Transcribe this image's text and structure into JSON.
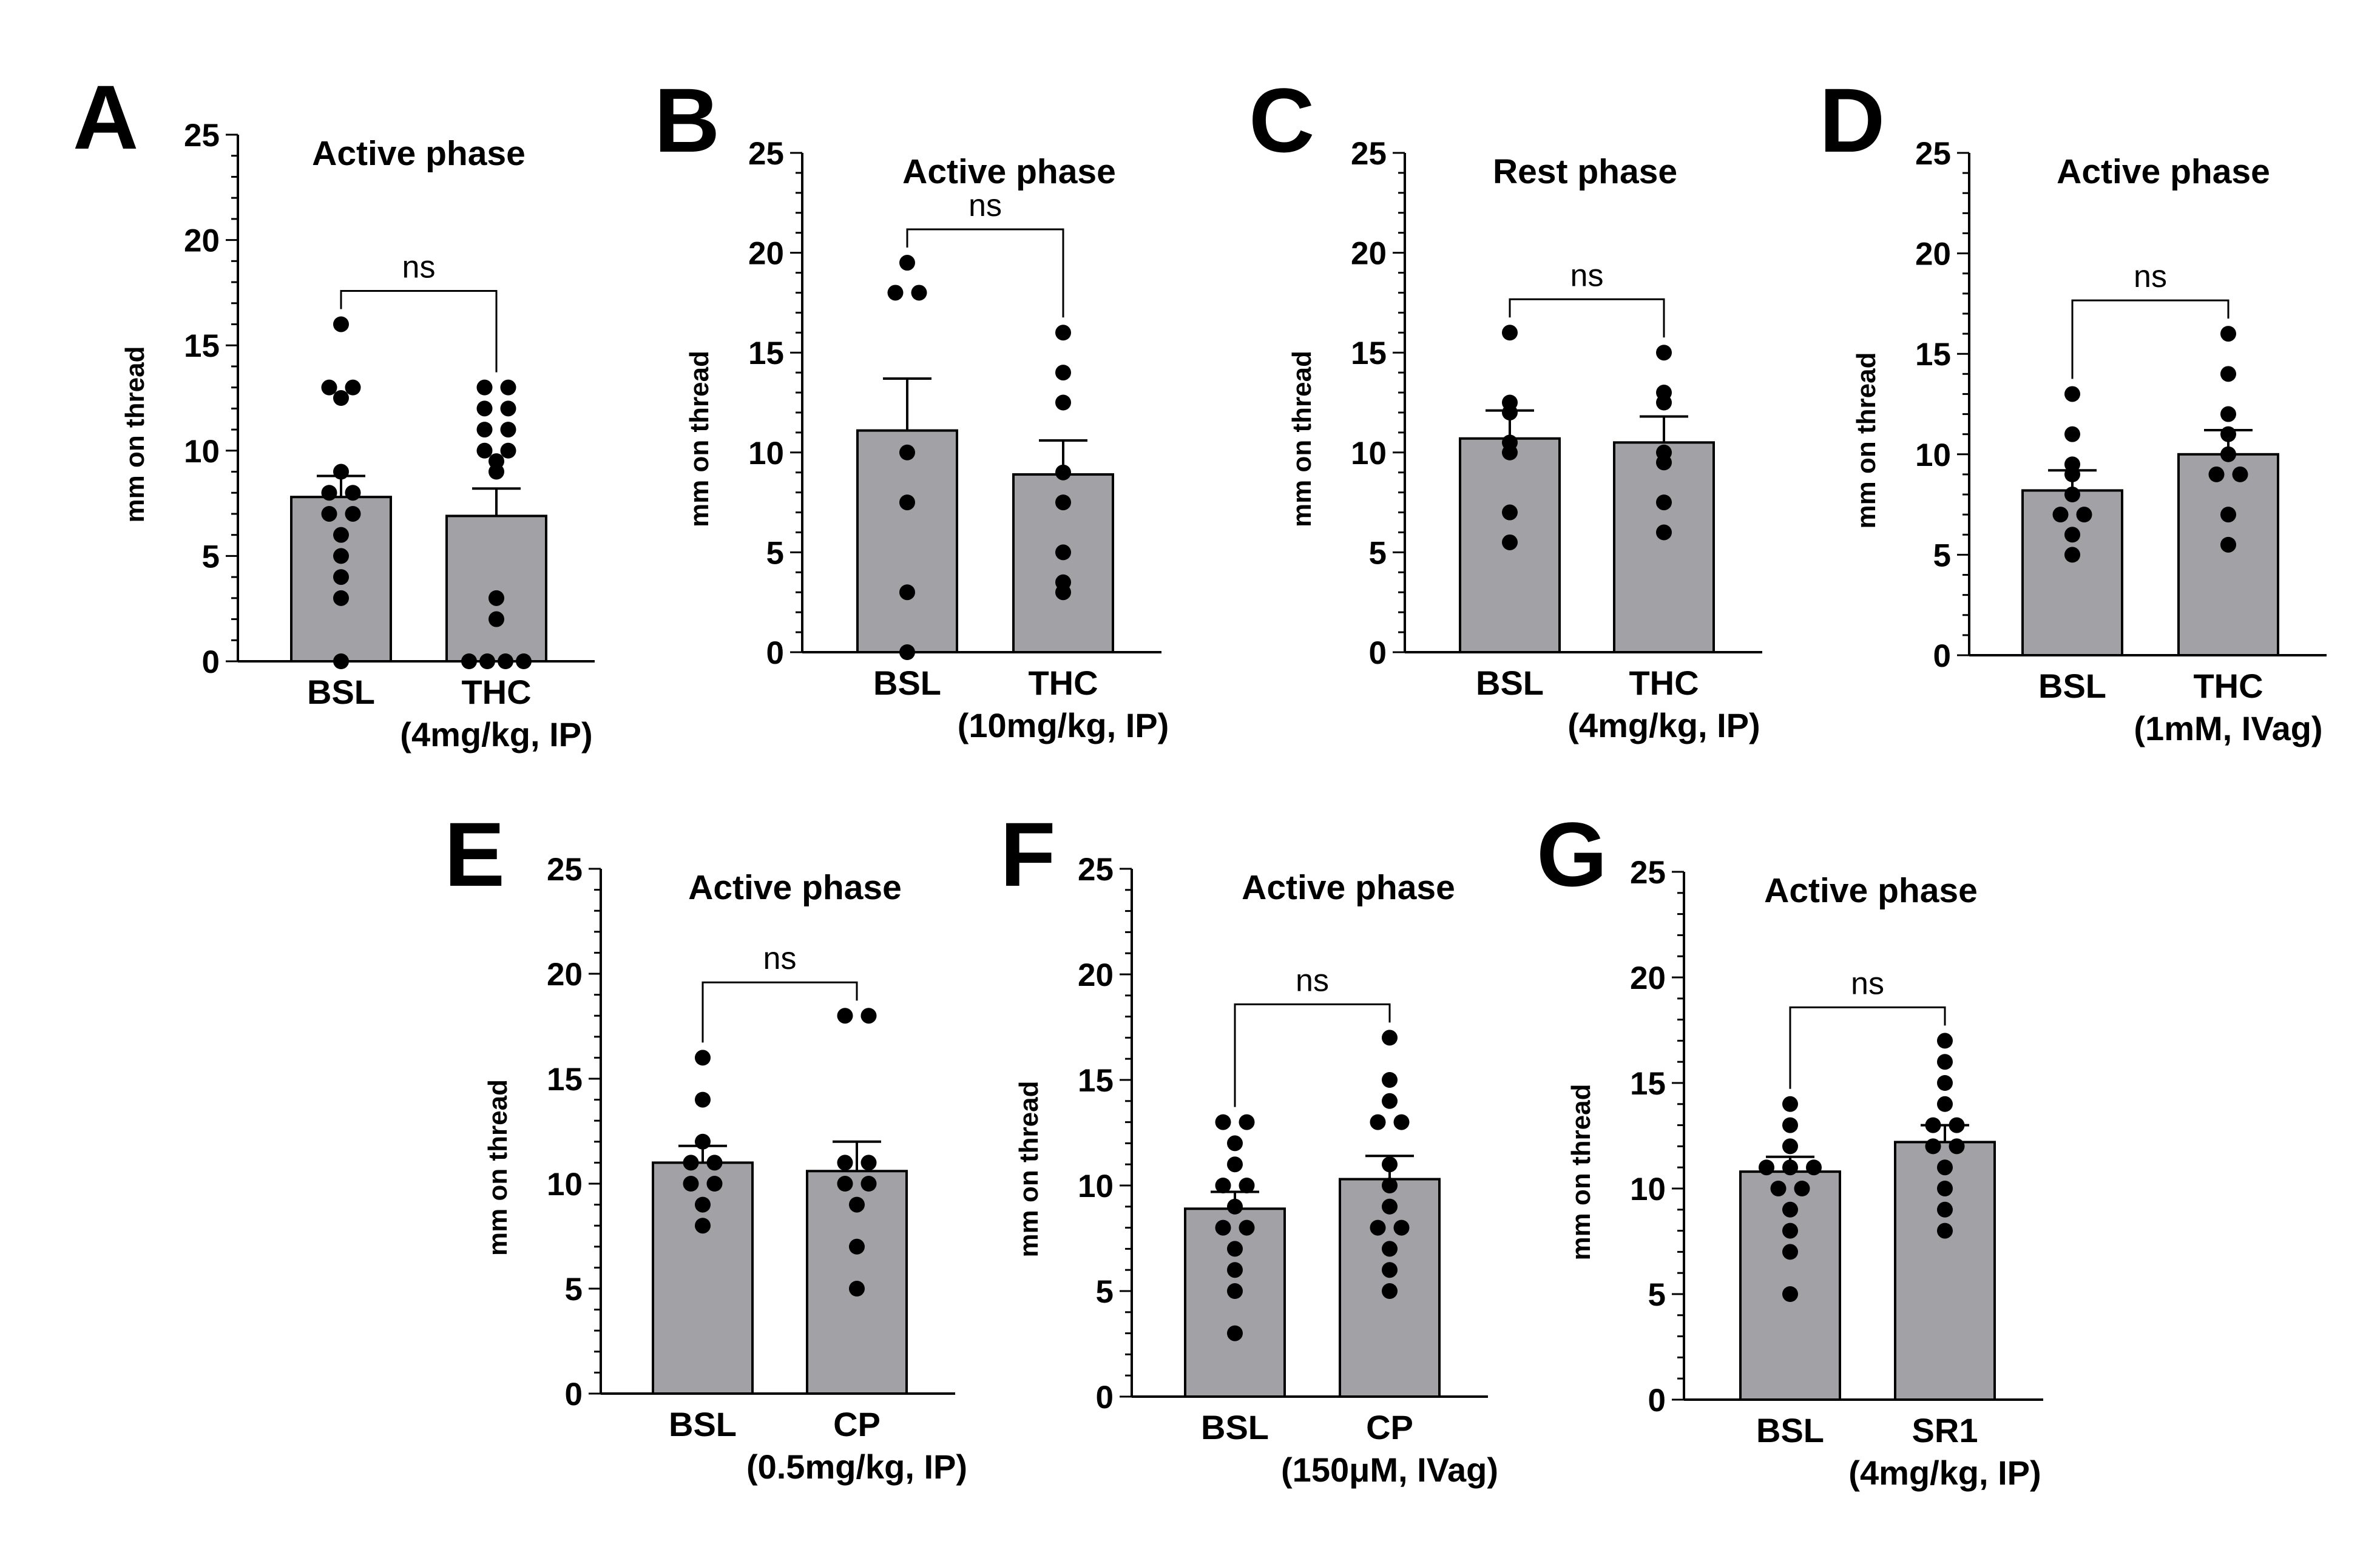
{
  "chart_data": [
    {
      "panel": "A",
      "type": "bar",
      "title": "Active phase",
      "ylabel": "mm on thread",
      "ylim": [
        0,
        25
      ],
      "yticks": [
        0,
        5,
        10,
        15,
        20,
        25
      ],
      "categories": [
        [
          "BSL"
        ],
        [
          "THC",
          "(4mg/kg, IP)"
        ]
      ],
      "means": [
        7.8,
        6.9
      ],
      "sem": [
        1.0,
        1.3
      ],
      "points": [
        [
          16,
          13,
          12.5,
          13,
          9,
          8,
          8,
          7,
          7,
          6,
          5,
          4,
          3,
          0
        ],
        [
          13,
          13,
          12,
          12,
          11,
          11,
          10,
          10,
          9.5,
          9,
          3,
          2,
          0,
          0,
          0,
          0
        ]
      ],
      "significance": "ns"
    },
    {
      "panel": "B",
      "type": "bar",
      "title": "Active phase",
      "ylabel": "mm on thread",
      "ylim": [
        0,
        25
      ],
      "yticks": [
        0,
        5,
        10,
        15,
        20,
        25
      ],
      "categories": [
        [
          "BSL"
        ],
        [
          "THC",
          "(10mg/kg, IP)"
        ]
      ],
      "means": [
        11.1,
        8.9
      ],
      "sem": [
        2.6,
        1.7
      ],
      "points": [
        [
          19.5,
          18,
          18,
          10,
          7.5,
          3,
          0
        ],
        [
          16,
          14,
          12.5,
          9,
          7.5,
          5,
          3.5,
          3
        ]
      ],
      "significance": "ns"
    },
    {
      "panel": "C",
      "type": "bar",
      "title": "Rest phase",
      "ylabel": "mm on thread",
      "ylim": [
        0,
        25
      ],
      "yticks": [
        0,
        5,
        10,
        15,
        20,
        25
      ],
      "categories": [
        [
          "BSL"
        ],
        [
          "THC",
          "(4mg/kg, IP)"
        ]
      ],
      "means": [
        10.7,
        10.5
      ],
      "sem": [
        1.4,
        1.3
      ],
      "points": [
        [
          16,
          12.5,
          12,
          10,
          10.5,
          7,
          5.5
        ],
        [
          15,
          13,
          12.5,
          10,
          9.5,
          7.5,
          6
        ]
      ],
      "significance": "ns"
    },
    {
      "panel": "D",
      "type": "bar",
      "title": "Active phase",
      "ylabel": "mm on thread",
      "ylim": [
        0,
        25
      ],
      "yticks": [
        0,
        5,
        10,
        15,
        20,
        25
      ],
      "categories": [
        [
          "BSL"
        ],
        [
          "THC",
          "(1mM, IVag)"
        ]
      ],
      "means": [
        8.2,
        10.0
      ],
      "sem": [
        1.0,
        1.2
      ],
      "points": [
        [
          13,
          11,
          9.5,
          9,
          8,
          7,
          7,
          6,
          5
        ],
        [
          16,
          14,
          12,
          11,
          10,
          9,
          9,
          7,
          5.5
        ]
      ],
      "significance": "ns"
    },
    {
      "panel": "E",
      "type": "bar",
      "title": "Active phase",
      "ylabel": "mm on thread",
      "ylim": [
        0,
        25
      ],
      "yticks": [
        0,
        5,
        10,
        15,
        20,
        25
      ],
      "categories": [
        [
          "BSL"
        ],
        [
          "CP",
          "(0.5mg/kg, IP)"
        ]
      ],
      "means": [
        11.0,
        10.6
      ],
      "sem": [
        0.8,
        1.4
      ],
      "points": [
        [
          16,
          14,
          12,
          11,
          11,
          10,
          10,
          9,
          8
        ],
        [
          18,
          18,
          11,
          11,
          10,
          10,
          9,
          7,
          5
        ]
      ],
      "significance": "ns"
    },
    {
      "panel": "F",
      "type": "bar",
      "title": "Active phase",
      "ylabel": "mm on thread",
      "ylim": [
        0,
        25
      ],
      "yticks": [
        0,
        5,
        10,
        15,
        20,
        25
      ],
      "categories": [
        [
          "BSL"
        ],
        [
          "CP",
          "(150μM, IVag)"
        ]
      ],
      "means": [
        8.9,
        10.3
      ],
      "sem": [
        0.8,
        1.1
      ],
      "points": [
        [
          13,
          13,
          12,
          11,
          10,
          10,
          9,
          8,
          8,
          7,
          6,
          5,
          3
        ],
        [
          17,
          15,
          14,
          13,
          13,
          11,
          10,
          9,
          8,
          8,
          7,
          6,
          5
        ]
      ],
      "significance": "ns"
    },
    {
      "panel": "G",
      "type": "bar",
      "title": "Active phase",
      "ylabel": "mm on thread",
      "ylim": [
        0,
        25
      ],
      "yticks": [
        0,
        5,
        10,
        15,
        20,
        25
      ],
      "categories": [
        [
          "BSL"
        ],
        [
          "SR1",
          "(4mg/kg, IP)"
        ]
      ],
      "means": [
        10.8,
        12.2
      ],
      "sem": [
        0.7,
        0.8
      ],
      "points": [
        [
          14,
          13,
          12,
          11,
          11,
          11,
          10,
          10,
          9,
          8,
          7,
          5
        ],
        [
          17,
          16,
          15,
          14,
          13,
          13,
          12,
          12,
          11,
          10,
          9,
          8
        ]
      ],
      "significance": "ns"
    }
  ]
}
